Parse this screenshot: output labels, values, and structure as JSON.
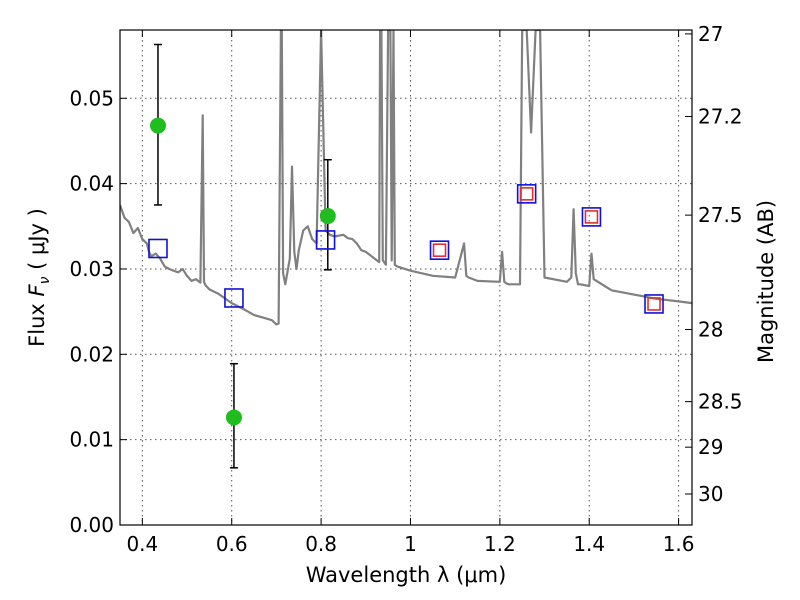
{
  "chart_data": {
    "type": "scatter",
    "xlabel": "Wavelength  λ (μm)",
    "ylabel": "Flux  F_ν  ( μJy )",
    "ylabel_parts": {
      "prefix": "Flux  ",
      "symbol": "F",
      "sub": "ν",
      "unit": "  ( μJy )"
    },
    "y2label": "Magnitude (AB)",
    "xlim": [
      0.35,
      1.63
    ],
    "ylim": [
      0.0,
      0.058
    ],
    "x_ticks": [
      0.4,
      0.6,
      0.8,
      1.0,
      1.2,
      1.4,
      1.6
    ],
    "x_tick_labels": [
      "0.4",
      "0.6",
      "0.8",
      "1",
      "1.2",
      "1.4",
      "1.6"
    ],
    "y_ticks": [
      0.0,
      0.01,
      0.02,
      0.03,
      0.04,
      0.05
    ],
    "y_tick_labels": [
      "0.00",
      "0.01",
      "0.02",
      "0.03",
      "0.04",
      "0.05"
    ],
    "y2_ticks": [
      {
        "label": "27",
        "mag": 27.0
      },
      {
        "label": "27.2",
        "mag": 27.2
      },
      {
        "label": "27.5",
        "mag": 27.5
      },
      {
        "label": "28",
        "mag": 28.0
      },
      {
        "label": "28.5",
        "mag": 28.5
      },
      {
        "label": "29",
        "mag": 29.0
      },
      {
        "label": "30",
        "mag": 30.0
      }
    ],
    "grid": true,
    "colors": {
      "model": "#808080",
      "observed": "#1fbd1f",
      "model_photometry": "#1010d8",
      "template_photometry": "#e03030",
      "errorbar": "#000000"
    },
    "series": [
      {
        "name": "model spectrum",
        "kind": "line",
        "x": [
          0.35,
          0.36,
          0.37,
          0.38,
          0.39,
          0.4,
          0.41,
          0.415,
          0.42,
          0.43,
          0.44,
          0.45,
          0.46,
          0.47,
          0.48,
          0.49,
          0.5,
          0.51,
          0.52,
          0.53,
          0.535,
          0.538,
          0.541,
          0.545,
          0.55,
          0.57,
          0.6,
          0.63,
          0.65,
          0.67,
          0.69,
          0.7,
          0.705,
          0.71,
          0.712,
          0.715,
          0.72,
          0.73,
          0.735,
          0.74,
          0.745,
          0.75,
          0.76,
          0.77,
          0.78,
          0.79,
          0.8,
          0.81,
          0.82,
          0.83,
          0.85,
          0.86,
          0.87,
          0.88,
          0.89,
          0.9,
          0.91,
          0.92,
          0.93,
          0.932,
          0.935,
          0.938,
          0.945,
          0.95,
          0.955,
          0.958,
          0.962,
          0.965,
          0.97,
          1.0,
          1.05,
          1.1,
          1.12,
          1.125,
          1.13,
          1.15,
          1.2,
          1.205,
          1.21,
          1.215,
          1.22,
          1.245,
          1.25,
          1.26,
          1.27,
          1.28,
          1.285,
          1.29,
          1.3,
          1.35,
          1.36,
          1.365,
          1.37,
          1.375,
          1.38,
          1.4,
          1.405,
          1.41,
          1.45,
          1.5,
          1.55,
          1.6,
          1.63
        ],
        "y": [
          0.0375,
          0.036,
          0.0355,
          0.0342,
          0.0348,
          0.0335,
          0.033,
          0.032,
          0.0315,
          0.0318,
          0.0312,
          0.0303,
          0.03,
          0.0298,
          0.0296,
          0.03,
          0.0292,
          0.0286,
          0.0288,
          0.0284,
          0.048,
          0.0285,
          0.0281,
          0.0279,
          0.0276,
          0.0271,
          0.026,
          0.0252,
          0.0246,
          0.0243,
          0.024,
          0.0235,
          0.0236,
          0.058,
          0.058,
          0.0295,
          0.0282,
          0.0312,
          0.042,
          0.032,
          0.03,
          0.0322,
          0.0345,
          0.035,
          0.0335,
          0.033,
          0.058,
          0.0345,
          0.034,
          0.0338,
          0.034,
          0.0336,
          0.0335,
          0.033,
          0.0322,
          0.032,
          0.0316,
          0.0312,
          0.0308,
          0.058,
          0.058,
          0.031,
          0.0305,
          0.058,
          0.058,
          0.031,
          0.058,
          0.0305,
          0.0303,
          0.0298,
          0.0292,
          0.029,
          0.033,
          0.0292,
          0.029,
          0.0286,
          0.0285,
          0.032,
          0.0285,
          0.0283,
          0.0282,
          0.0282,
          0.058,
          0.058,
          0.046,
          0.058,
          0.058,
          0.058,
          0.029,
          0.0285,
          0.029,
          0.037,
          0.0295,
          0.0282,
          0.0282,
          0.028,
          0.0318,
          0.0288,
          0.0275,
          0.027,
          0.0265,
          0.0262,
          0.026
        ]
      },
      {
        "name": "observed photometry",
        "kind": "points_errorbar",
        "x": [
          0.435,
          0.605,
          0.815
        ],
        "y": [
          0.0468,
          0.0126,
          0.0362
        ],
        "yerr_low": [
          0.0093,
          0.0059,
          0.0063
        ],
        "yerr_high": [
          0.0095,
          0.0063,
          0.0066
        ]
      },
      {
        "name": "model photometry",
        "kind": "open_squares",
        "x": [
          0.435,
          0.605,
          0.81,
          1.065,
          1.26,
          1.405,
          1.545
        ],
        "y": [
          0.0324,
          0.0266,
          0.0334,
          0.0322,
          0.0388,
          0.0361,
          0.0259
        ]
      },
      {
        "name": "template photometry",
        "kind": "open_squares",
        "x": [
          1.065,
          1.26,
          1.405,
          1.545
        ],
        "y": [
          0.0322,
          0.0388,
          0.0361,
          0.0259
        ]
      }
    ]
  }
}
